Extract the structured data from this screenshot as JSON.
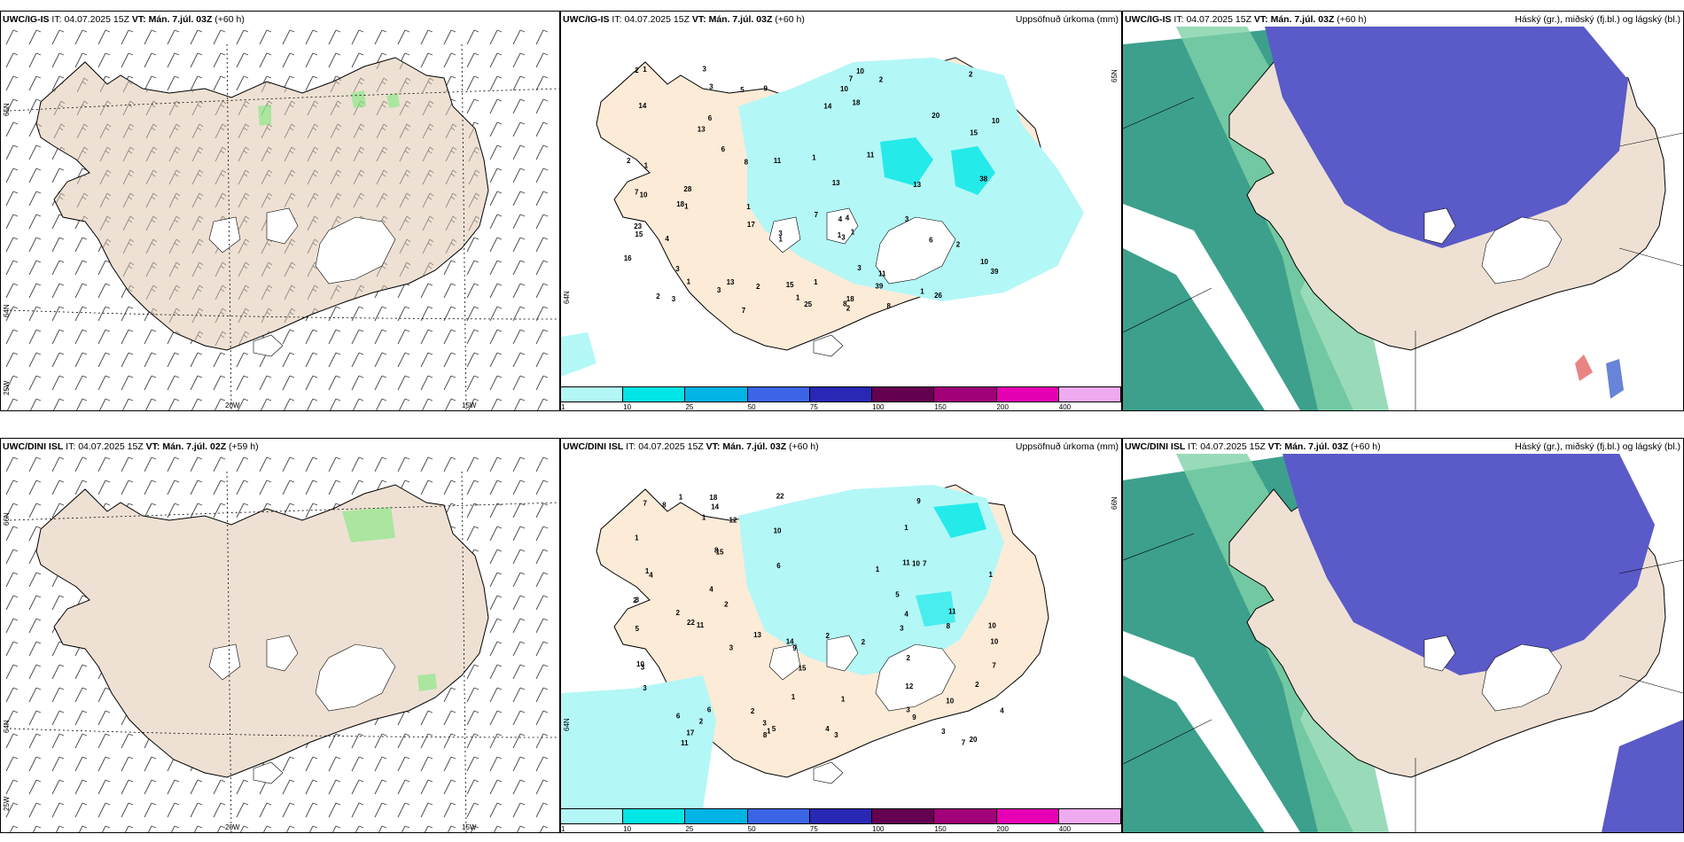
{
  "panels": [
    {
      "model": "UWC/IG-IS",
      "it_label": "IT:",
      "it": "04.07.2025 15Z",
      "vt_label": "VT:",
      "vt": "Mán. 7.júl. 03Z",
      "lead": "(+60 h)",
      "field": "",
      "lat_labels": [
        "65N",
        "64N",
        "25W"
      ],
      "lon_labels": [
        "20W",
        "15W"
      ]
    },
    {
      "model": "UWC/IG-IS",
      "it_label": "IT:",
      "it": "04.07.2025 15Z",
      "vt_label": "VT:",
      "vt": "Mán. 7.júl. 03Z",
      "lead": "(+60 h)",
      "field": "Uppsöfnuð úrkoma (mm)",
      "lat_labels": [
        "65N",
        "64N"
      ],
      "precip_values": [
        "1",
        "1",
        "2",
        "3",
        "1",
        "11",
        "13",
        "4",
        "8",
        "1",
        "1",
        "2",
        "4",
        "3",
        "6",
        "10",
        "11",
        "15",
        "7",
        "13",
        "23",
        "4",
        "1",
        "3",
        "2",
        "10",
        "39",
        "10",
        "18",
        "39",
        "38",
        "17",
        "9",
        "14",
        "7",
        "3",
        "8",
        "16",
        "26",
        "6",
        "28",
        "14",
        "10",
        "5",
        "2",
        "6",
        "1",
        "18",
        "15",
        "15",
        "18",
        "20",
        "7",
        "1",
        "3",
        "25",
        "13",
        "13",
        "8",
        "7",
        "10",
        "11",
        "2",
        "3",
        "2",
        "2",
        "2",
        "1",
        "1",
        "3",
        "3",
        "1",
        "1",
        "3"
      ],
      "colorbar": {
        "colors": [
          "#b4f7f7",
          "#00e6e6",
          "#00b4e6",
          "#3c64e6",
          "#2828b4",
          "#640050",
          "#a00078",
          "#e600b4",
          "#f0aaf0"
        ],
        "ticks": [
          "1",
          "10",
          "25",
          "50",
          "75",
          "100",
          "150",
          "200",
          "400"
        ]
      }
    },
    {
      "model": "UWC/IG-IS",
      "it_label": "IT:",
      "it": "04.07.2025 15Z",
      "vt_label": "VT:",
      "vt": "Mán. 7.júl. 03Z",
      "lead": "(+60 h)",
      "field": "Háský (gr.), miðský (fj.bl.) og lágský (bl.)"
    },
    {
      "model": "UWC/DINI ISL",
      "it_label": "IT:",
      "it": "04.07.2025 15Z",
      "vt_label": "VT:",
      "vt": "Mán. 7.júl. 02Z",
      "lead": "(+59 h)",
      "field": "",
      "lat_labels": [
        "66N",
        "64N",
        "25W"
      ],
      "lon_labels": [
        "20W",
        "15W"
      ]
    },
    {
      "model": "UWC/DINI ISL",
      "it_label": "IT:",
      "it": "04.07.2025 15Z",
      "vt_label": "VT:",
      "vt": "Mán. 7.júl. 03Z",
      "lead": "(+60 h)",
      "field": "Uppsöfnuð úrkoma (mm)",
      "lat_labels": [
        "66N",
        "64N"
      ],
      "precip_values": [
        "2",
        "3",
        "2",
        "2",
        "4",
        "6",
        "2",
        "8",
        "3",
        "22",
        "22",
        "9",
        "2",
        "7",
        "3",
        "4",
        "5",
        "10",
        "7",
        "17",
        "11",
        "1",
        "2",
        "9",
        "11",
        "12",
        "14",
        "11",
        "10",
        "4",
        "8",
        "12",
        "6",
        "14",
        "3",
        "1",
        "1",
        "9",
        "7",
        "15",
        "8",
        "10",
        "18",
        "20",
        "15",
        "1",
        "1",
        "10",
        "11",
        "2",
        "1",
        "6",
        "8",
        "2",
        "10",
        "5",
        "3",
        "2",
        "1",
        "3",
        "7",
        "3",
        "3",
        "4",
        "4",
        "3",
        "1",
        "1",
        "1",
        "5",
        "10",
        "13"
      ],
      "colorbar": {
        "colors": [
          "#b4f7f7",
          "#00e6e6",
          "#00b4e6",
          "#3c64e6",
          "#2828b4",
          "#640050",
          "#a00078",
          "#e600b4",
          "#f0aaf0"
        ],
        "ticks": [
          "1",
          "10",
          "25",
          "50",
          "75",
          "100",
          "150",
          "200",
          "400"
        ]
      }
    },
    {
      "model": "UWC/DINI ISL",
      "it_label": "IT:",
      "it": "04.07.2025 15Z",
      "vt_label": "VT:",
      "vt": "Mán. 7.júl. 03Z",
      "lead": "(+60 h)",
      "field": "Háský (gr.), miðský (fj.bl.) og lágský (bl.)"
    }
  ],
  "colors": {
    "land": "#eee1d3",
    "precip_light": "#b4f7f7",
    "precip_mid": "#00e6e6",
    "high_cloud": "#5a5ac8",
    "mid_cloud_dark": "#3ca08c",
    "mid_cloud_light": "#7fd2a8",
    "low_cloud": "#2850c8"
  }
}
